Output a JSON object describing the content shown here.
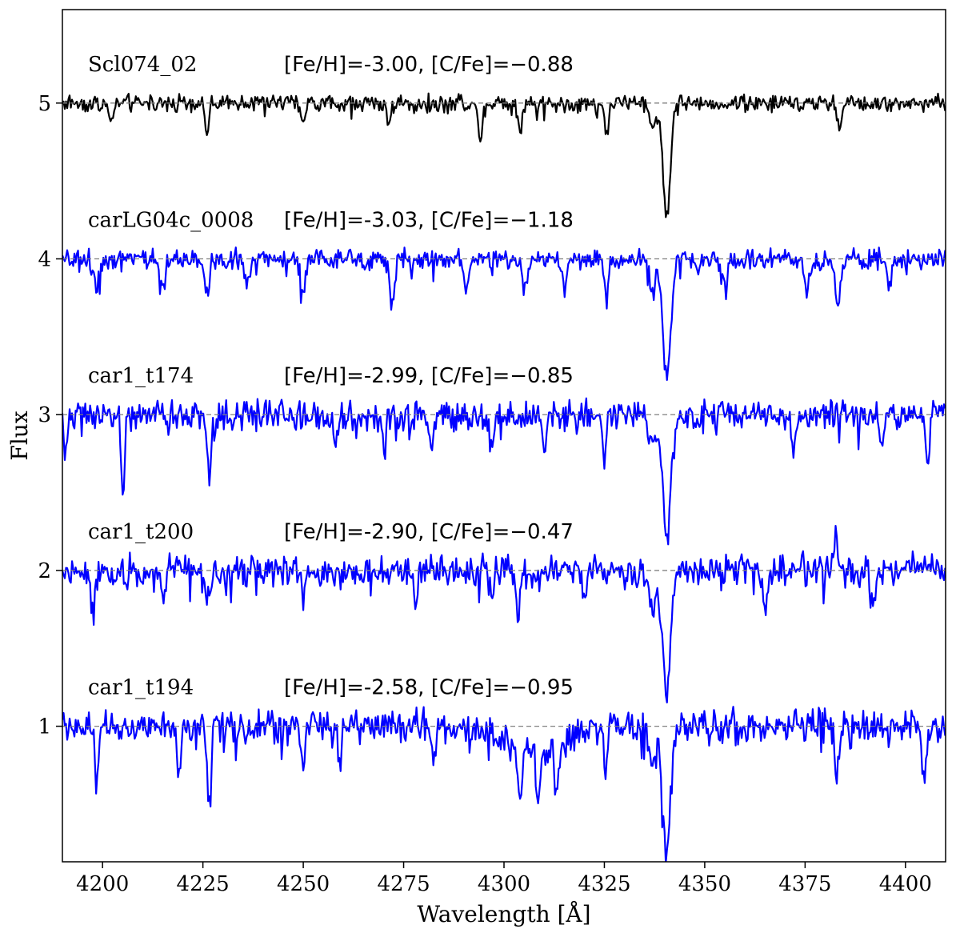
{
  "chart_data": {
    "type": "line",
    "title": "",
    "xlabel": "Wavelength [Å]",
    "ylabel": "Flux",
    "xlim": [
      4190,
      4410
    ],
    "ylim": [
      0.13,
      5.6
    ],
    "xticks": [
      4200,
      4225,
      4250,
      4275,
      4300,
      4325,
      4350,
      4375,
      4400
    ],
    "yticks": [
      1,
      2,
      3,
      4,
      5
    ],
    "grid": false,
    "legend": "none",
    "reference_lines": [
      {
        "y": 5,
        "style": "dashed",
        "color": "#808080"
      },
      {
        "y": 4,
        "style": "dashed",
        "color": "#808080"
      },
      {
        "y": 3,
        "style": "dashed",
        "color": "#808080"
      },
      {
        "y": 2,
        "style": "dashed",
        "color": "#808080"
      },
      {
        "y": 1,
        "style": "dashed",
        "color": "#808080"
      }
    ],
    "series": [
      {
        "offset": 5,
        "color": "#000000",
        "name_label": "Scl074_02",
        "param_label": "[Fe/H]=-3.00, [C/Fe]=−0.88",
        "noise": 0.04,
        "lines": [
          [
            4340.5,
            0.73,
            0.9
          ],
          [
            4226,
            0.2,
            0.5
          ],
          [
            4294,
            0.25,
            0.5
          ],
          [
            4304,
            0.18,
            0.5
          ],
          [
            4325.5,
            0.2,
            0.5
          ],
          [
            4383.5,
            0.18,
            0.5
          ],
          [
            4202,
            0.12,
            0.5
          ],
          [
            4250,
            0.12,
            0.5
          ],
          [
            4271.5,
            0.12,
            0.5
          ],
          [
            4337,
            0.15,
            0.8
          ]
        ]
      },
      {
        "offset": 4,
        "color": "#0000ff",
        "name_label": "carLG04c_0008",
        "param_label": "[Fe/H]=-3.03, [C/Fe]=−1.18",
        "noise": 0.05,
        "lines": [
          [
            4340.5,
            0.75,
            1.0
          ],
          [
            4272,
            0.3,
            0.6
          ],
          [
            4226,
            0.25,
            0.6
          ],
          [
            4383,
            0.3,
            0.6
          ],
          [
            4375.5,
            0.2,
            0.6
          ],
          [
            4198.5,
            0.2,
            0.6
          ],
          [
            4250,
            0.22,
            0.6
          ],
          [
            4305,
            0.2,
            0.6
          ],
          [
            4325.5,
            0.22,
            0.6
          ],
          [
            4215,
            0.2,
            0.6
          ],
          [
            4236,
            0.18,
            0.6
          ],
          [
            4290.5,
            0.2,
            0.6
          ],
          [
            4315,
            0.18,
            0.6
          ],
          [
            4396,
            0.18,
            0.6
          ],
          [
            4337,
            0.18,
            0.8
          ],
          [
            4355,
            0.15,
            0.6
          ]
        ]
      },
      {
        "offset": 3,
        "color": "#0000ff",
        "name_label": "car1_t174",
        "param_label": "[Fe/H]=-2.99, [C/Fe]=−0.85",
        "noise": 0.07,
        "lines": [
          [
            4340.5,
            0.75,
            1.0
          ],
          [
            4205,
            0.58,
            0.4
          ],
          [
            4226.5,
            0.4,
            0.5
          ],
          [
            4405.5,
            0.3,
            0.5
          ],
          [
            4190.8,
            0.22,
            0.5
          ],
          [
            4258,
            0.22,
            0.5
          ],
          [
            4297,
            0.22,
            0.5
          ],
          [
            4325,
            0.25,
            0.5
          ],
          [
            4372,
            0.22,
            0.5
          ],
          [
            4394,
            0.2,
            0.5
          ],
          [
            4337,
            0.2,
            0.8
          ],
          [
            4270,
            0.2,
            0.5
          ],
          [
            4282,
            0.2,
            0.5
          ],
          [
            4310,
            0.22,
            0.5
          ]
        ]
      },
      {
        "offset": 2,
        "color": "#0000ff",
        "name_label": "car1_t200",
        "param_label": "[Fe/H]=-2.90, [C/Fe]=−0.47",
        "noise": 0.08,
        "lines": [
          [
            4340.5,
            0.75,
            1.0
          ],
          [
            4197.5,
            0.3,
            0.5
          ],
          [
            4303.5,
            0.25,
            0.5
          ],
          [
            4392,
            0.25,
            0.5
          ],
          [
            4226,
            0.22,
            0.5
          ],
          [
            4297,
            0.2,
            0.5
          ],
          [
            4337,
            0.25,
            0.8
          ],
          [
            4215,
            0.2,
            0.5
          ],
          [
            4250,
            0.2,
            0.5
          ],
          [
            4278,
            0.2,
            0.5
          ],
          [
            4320,
            0.2,
            0.5
          ],
          [
            4365,
            0.18,
            0.5
          ],
          [
            4382.5,
            -0.25,
            0.4
          ]
        ]
      },
      {
        "offset": 1,
        "color": "#0000ff",
        "name_label": "car1_t194",
        "param_label": "[Fe/H]=-2.58, [C/Fe]=−0.95",
        "noise": 0.08,
        "lines": [
          [
            4340.5,
            0.83,
            1.0
          ],
          [
            4226.5,
            0.48,
            0.5
          ],
          [
            4308.5,
            0.4,
            0.5
          ],
          [
            4404.5,
            0.35,
            0.5
          ],
          [
            4219,
            0.38,
            0.5
          ],
          [
            4198.5,
            0.32,
            0.5
          ],
          [
            4304,
            0.35,
            0.5
          ],
          [
            4313,
            0.33,
            0.5
          ],
          [
            4383,
            0.32,
            0.5
          ],
          [
            4250,
            0.25,
            0.5
          ],
          [
            4282.5,
            0.28,
            0.5
          ],
          [
            4259,
            0.22,
            0.5
          ],
          [
            4325.5,
            0.25,
            0.5
          ],
          [
            4337,
            0.25,
            0.8
          ]
        ],
        "bands": [
          [
            4308,
            0.15,
            8
          ]
        ]
      }
    ]
  }
}
